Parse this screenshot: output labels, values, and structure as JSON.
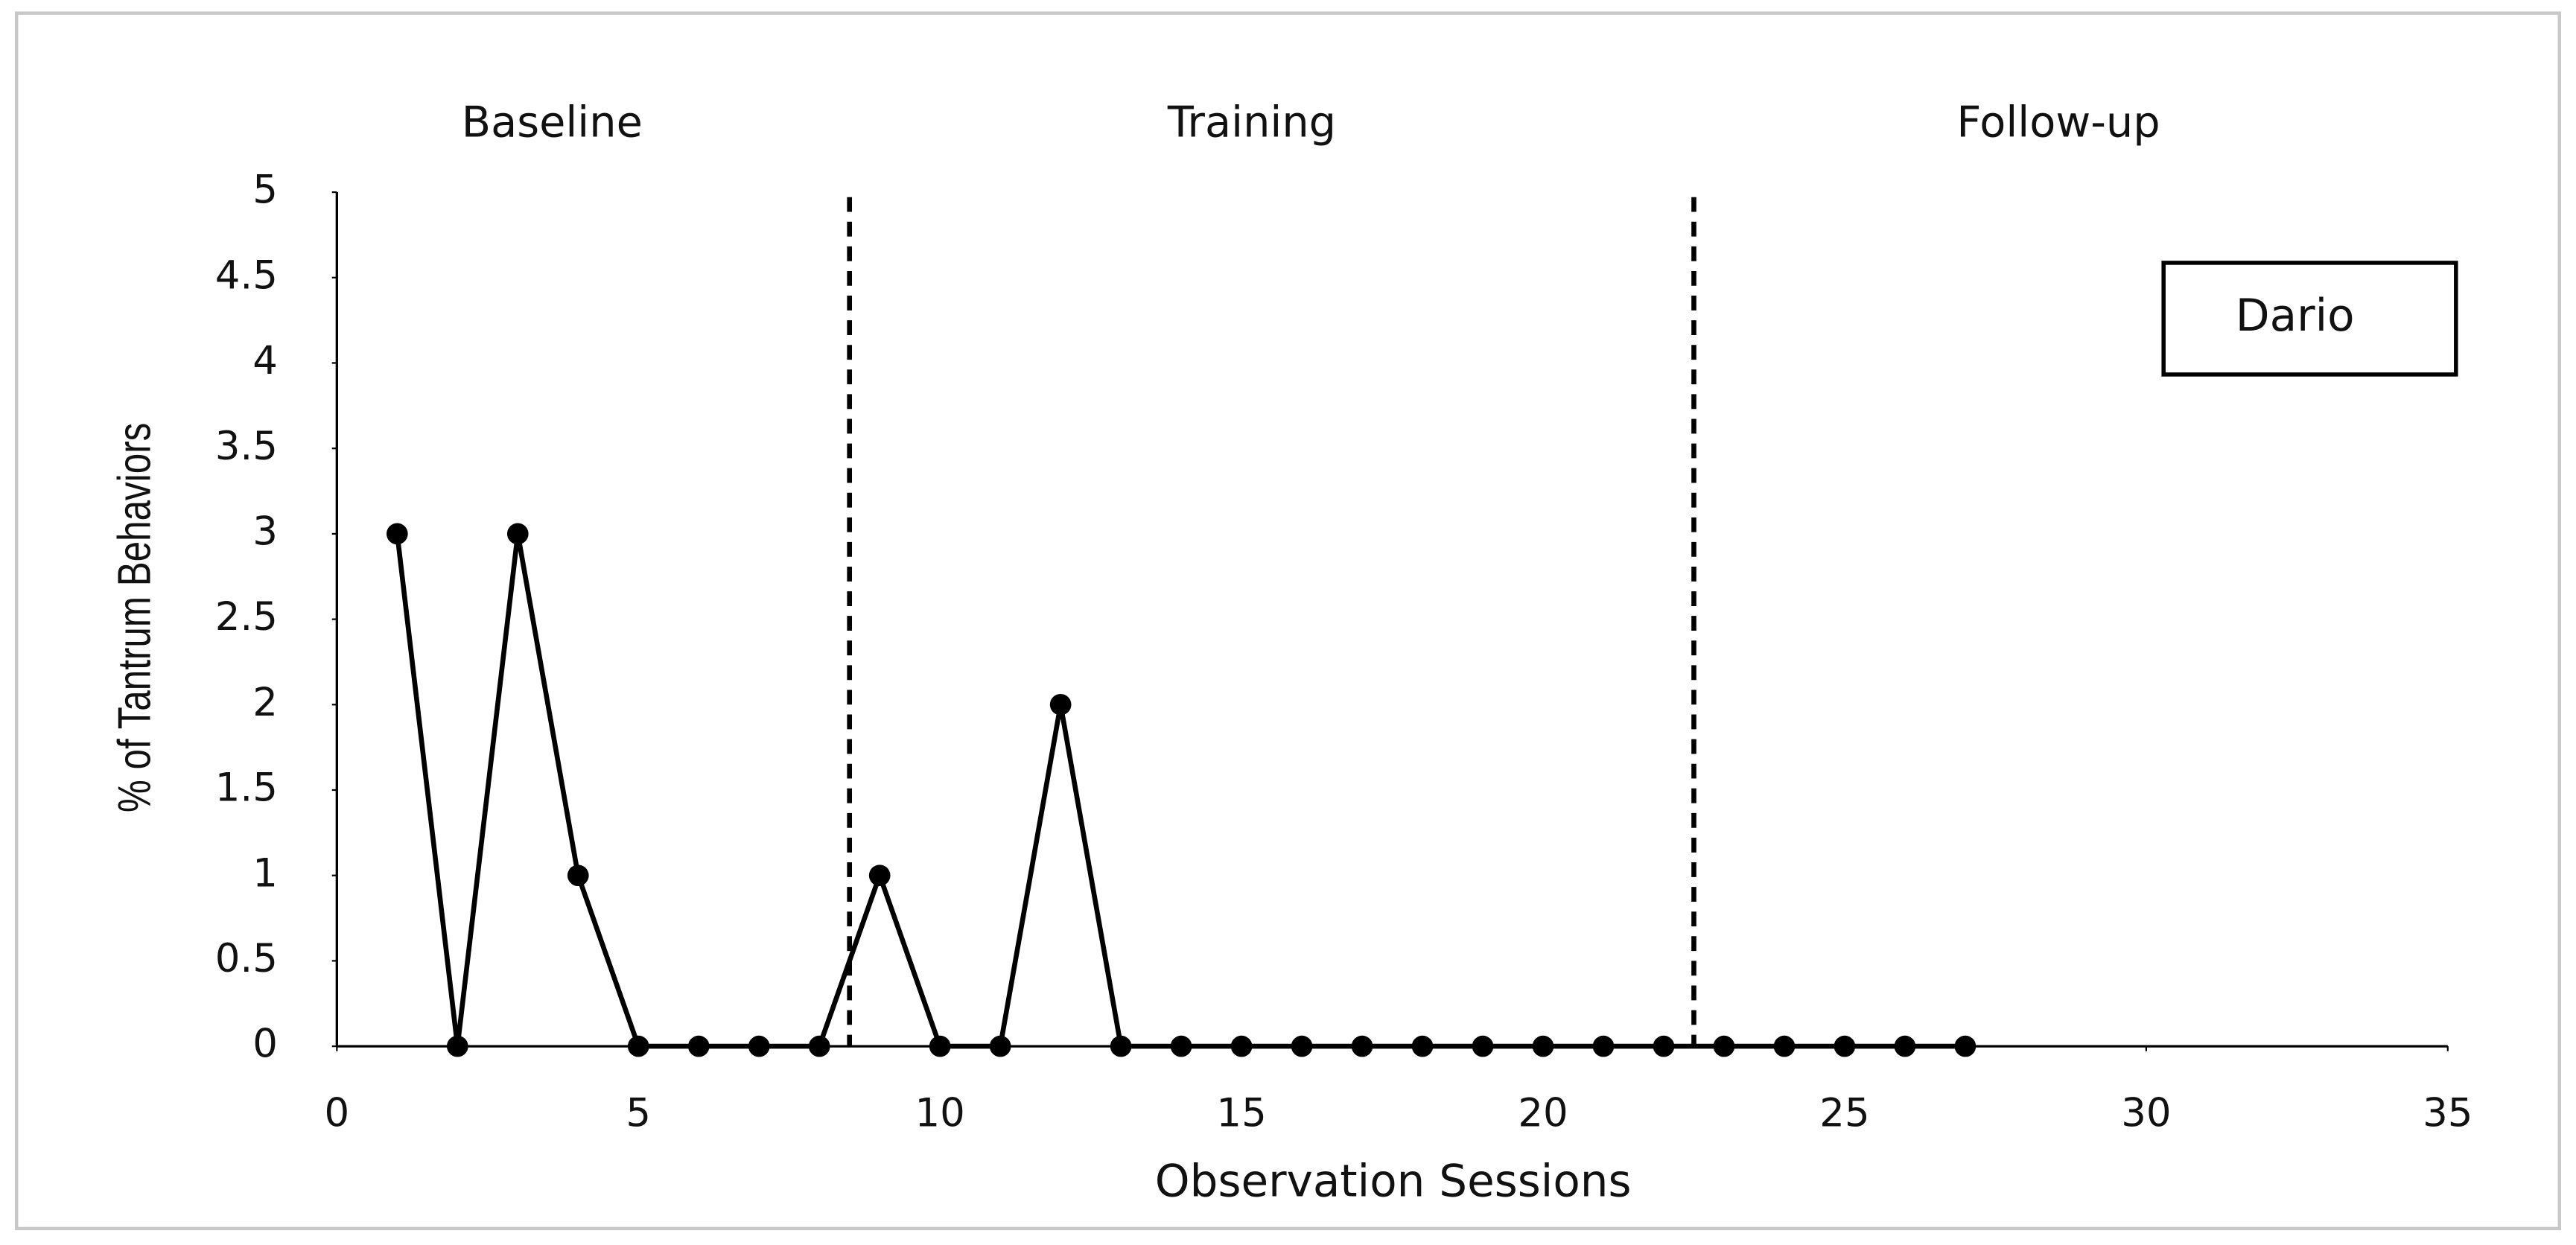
{
  "chart_data": {
    "type": "line",
    "x_label": "Observation Sessions",
    "y_label": "% of Tantrum Behaviors",
    "x": [
      1,
      2,
      3,
      4,
      5,
      6,
      7,
      8,
      9,
      10,
      11,
      12,
      13,
      14,
      15,
      16,
      17,
      18,
      19,
      20,
      21,
      22,
      23,
      24,
      25,
      26,
      27
    ],
    "series": [
      {
        "name": "Dario",
        "color": "#000000",
        "values": [
          3,
          0,
          3,
          1,
          0,
          0,
          0,
          0,
          1,
          0,
          0,
          2,
          0,
          0,
          0,
          0,
          0,
          0,
          0,
          0,
          0,
          0,
          0,
          0,
          0,
          0,
          0
        ]
      }
    ],
    "phases": [
      "Baseline",
      "Training",
      "Follow-up"
    ],
    "phase_lines": [
      8.5,
      22.5
    ],
    "xlim": [
      0,
      35
    ],
    "xticks": [
      0,
      5,
      10,
      15,
      20,
      25,
      30,
      35
    ],
    "ylim": [
      0,
      5
    ],
    "yticks": [
      0,
      0.5,
      1,
      1.5,
      2,
      2.5,
      3,
      3.5,
      4,
      4.5,
      5
    ],
    "grid": false,
    "legend": "upper-right"
  }
}
